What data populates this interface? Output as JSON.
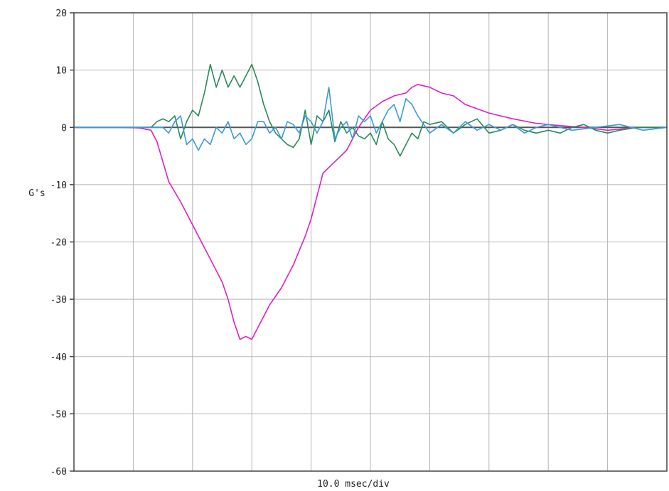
{
  "chart_data": {
    "type": "line",
    "title": "",
    "xlabel": "10.0 msec/div",
    "ylabel": "G's",
    "xlim": [
      0,
      100
    ],
    "ylim": [
      -60,
      20
    ],
    "x_divisions": 10,
    "x_unit": "msec",
    "grid": true,
    "y_ticks": [
      20,
      10,
      0,
      -10,
      -20,
      -30,
      -40,
      -50,
      -60
    ],
    "y_tick_labels": [
      "20",
      "10",
      "0",
      "-10",
      "-20",
      "-30",
      "-40",
      "-50",
      "-60"
    ],
    "series": [
      {
        "color": "#e020c0",
        "x": [
          0,
          8,
          11,
          13,
          14,
          15,
          16,
          18,
          20,
          22,
          24,
          25,
          26,
          27,
          28,
          29,
          30,
          31,
          32,
          33,
          35,
          37,
          39,
          40,
          41,
          42,
          44,
          46,
          48,
          50,
          52,
          54,
          56,
          57,
          58,
          60,
          62,
          64,
          66,
          70,
          74,
          78,
          82,
          86,
          90,
          95,
          100
        ],
        "y": [
          0,
          0,
          -0.1,
          -0.5,
          -2.5,
          -6,
          -9.5,
          -13,
          -17,
          -21,
          -25,
          -27,
          -30,
          -34,
          -37,
          -36.5,
          -37,
          -35,
          -33,
          -31,
          -28,
          -24,
          -19,
          -16,
          -12,
          -8,
          -6,
          -4,
          0,
          3,
          4.5,
          5.5,
          6,
          7,
          7.5,
          7,
          6,
          5.5,
          4,
          2.5,
          1.5,
          0.7,
          0.3,
          0,
          -0.5,
          0,
          0
        ]
      },
      {
        "color": "#2a8a58",
        "x": [
          0,
          13,
          14,
          15,
          16,
          17,
          18,
          19,
          20,
          21,
          22,
          23,
          24,
          25,
          26,
          27,
          28,
          29,
          30,
          31,
          32,
          33,
          34,
          35,
          36,
          37,
          38,
          39,
          40,
          41,
          42,
          43,
          44,
          45,
          46,
          47,
          48,
          49,
          50,
          51,
          52,
          53,
          54,
          55,
          56,
          57,
          58,
          59,
          60,
          62,
          64,
          66,
          68,
          70,
          72,
          74,
          76,
          78,
          80,
          82,
          84,
          86,
          88,
          90,
          92,
          95,
          100
        ],
        "y": [
          0,
          0,
          1,
          1.5,
          1,
          2,
          -2,
          1,
          3,
          2,
          6,
          11,
          7,
          10,
          7,
          9,
          7,
          9,
          11,
          8,
          4,
          1,
          -1,
          -2,
          -3,
          -3.5,
          -2,
          3,
          -3,
          2,
          1,
          3,
          -2.5,
          1,
          -1,
          0,
          -1.5,
          -2,
          -1,
          -3,
          1,
          -2,
          -3,
          -5,
          -3,
          -1,
          -2,
          1,
          0.5,
          1,
          -1,
          0.5,
          1.5,
          -1,
          -0.5,
          0.5,
          -0.5,
          -1,
          -0.5,
          -1,
          0,
          0.5,
          -0.5,
          -1,
          -0.5,
          0,
          0
        ]
      },
      {
        "color": "#3a9ad8",
        "x": [
          0,
          15,
          16,
          17,
          18,
          19,
          20,
          21,
          22,
          23,
          24,
          25,
          26,
          27,
          28,
          29,
          30,
          31,
          32,
          33,
          34,
          35,
          36,
          37,
          38,
          39,
          40,
          41,
          42,
          43,
          44,
          45,
          46,
          47,
          48,
          49,
          50,
          51,
          52,
          53,
          54,
          55,
          56,
          57,
          58,
          60,
          62,
          64,
          66,
          68,
          70,
          72,
          74,
          76,
          78,
          80,
          84,
          88,
          92,
          96,
          100
        ],
        "y": [
          0,
          0,
          -1,
          1,
          2,
          -3,
          -2,
          -4,
          -2,
          -3,
          0,
          -1,
          1,
          -2,
          -1,
          -3,
          -2,
          1,
          1,
          -1,
          0,
          -2,
          1,
          0.5,
          -1,
          2,
          1,
          -1,
          1,
          7,
          -2,
          0,
          1,
          -2,
          2,
          1,
          2,
          -1,
          1,
          3,
          4,
          1,
          5,
          4,
          2,
          -1,
          0.5,
          -1,
          1,
          -0.5,
          0.5,
          -0.5,
          0.5,
          -1,
          0,
          0.5,
          -0.5,
          0,
          0.5,
          -0.5,
          0
        ]
      }
    ]
  }
}
